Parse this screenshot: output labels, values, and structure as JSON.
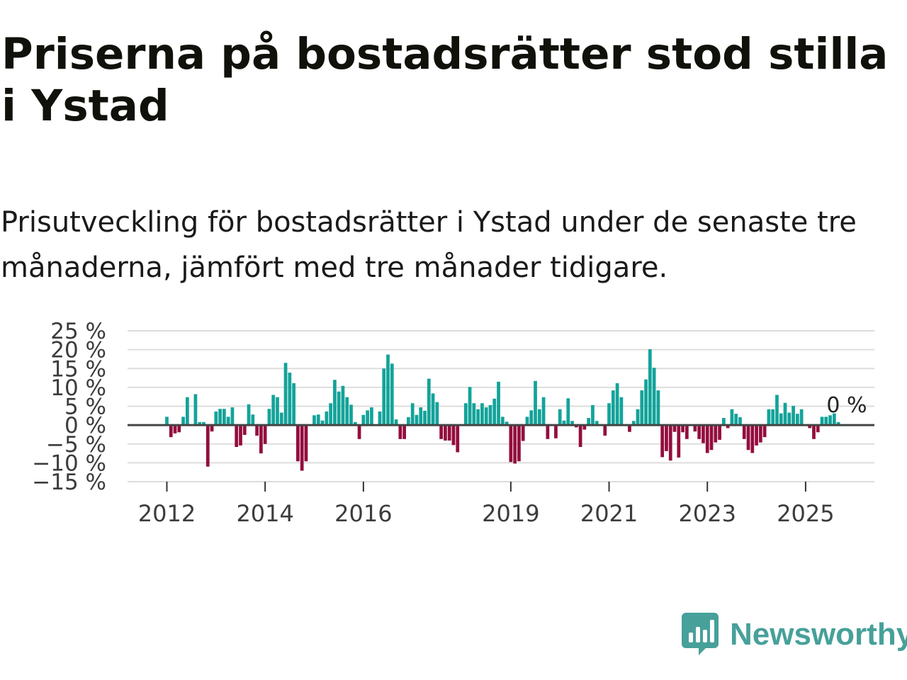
{
  "title": "Priserna på bostadsrätter stod stilla i Ystad",
  "subtitle": "Prisutveckling för bostadsrätter i Ystad under de senaste tre månaderna, jämfört med tre månader tidigare.",
  "brand": {
    "name": "Newsworthy",
    "icon": "newsworthy-logo-icon",
    "color": "#47a09a"
  },
  "colors": {
    "positive": "#13a39a",
    "negative": "#930d3e",
    "grid": "#dddddd",
    "zero_line": "#444444"
  },
  "chart_data": {
    "type": "bar",
    "title": "Prisutveckling för bostadsrätter i Ystad",
    "xlabel": "",
    "ylabel": "",
    "ylim": [
      -15,
      25
    ],
    "yticks": [
      25,
      20,
      15,
      10,
      5,
      0,
      -5,
      -10,
      -15
    ],
    "ytick_labels": [
      "25 %",
      "20 %",
      "15 %",
      "10 %",
      "5 %",
      "0 %",
      "−5 %",
      "−10 %",
      "−15 %"
    ],
    "xlim": [
      2011.2,
      2026.4
    ],
    "xticks": [
      2012,
      2014,
      2016,
      2019,
      2021,
      2023,
      2025
    ],
    "xtick_labels": [
      "2012",
      "2014",
      "2016",
      "2019",
      "2021",
      "2023",
      "2025"
    ],
    "start": "2012-01",
    "unit": "%",
    "grid": true,
    "annotation": {
      "label": "0 %",
      "value": 0
    },
    "values": [
      2.2,
      -3.2,
      -2.2,
      -1.9,
      2.2,
      7.4,
      0,
      8.2,
      0.8,
      0.8,
      -11,
      -1.7,
      3.6,
      4.3,
      4.3,
      2.2,
      4.7,
      -5.8,
      -5.4,
      -2.6,
      5.5,
      2.8,
      -2.8,
      -7.5,
      -5,
      4.3,
      8,
      7.4,
      3.3,
      16.5,
      13.9,
      11.1,
      -9.6,
      -12.1,
      -9.6,
      0,
      2.6,
      2.8,
      1.2,
      3.6,
      5.8,
      12,
      8.9,
      10.4,
      7.4,
      5.4,
      0.8,
      -3.7,
      2.7,
      3.9,
      4.7,
      0,
      3.6,
      15,
      18.7,
      16.3,
      1.5,
      -3.7,
      -3.7,
      2.1,
      5.8,
      2.7,
      4.7,
      3.8,
      12.3,
      8.4,
      6.1,
      -3.7,
      -4.1,
      -4.1,
      -5.3,
      -7.2,
      0,
      5.8,
      10.1,
      5.8,
      4.2,
      5.8,
      4.7,
      5.3,
      7,
      11.5,
      2.2,
      0.9,
      -9.8,
      -10.2,
      -9.6,
      -4.2,
      2.2,
      3.9,
      11.7,
      4.2,
      7.4,
      -3.7,
      0,
      -3.5,
      4.2,
      1.2,
      7.1,
      1.1,
      -0.6,
      -5.8,
      -1.2,
      1.9,
      5.3,
      1.1,
      0,
      -2.8,
      5.8,
      9.2,
      11.1,
      7.4,
      0,
      -1.8,
      1.1,
      4.2,
      9.2,
      12.1,
      20.1,
      15.2,
      9.2,
      -8.5,
      -6.9,
      -9.4,
      -1.8,
      -8.6,
      -1.9,
      -3.7,
      0,
      -1.7,
      -3.7,
      -4.8,
      -7.4,
      -6.6,
      -4.6,
      -3.9,
      1.9,
      -0.8,
      4.2,
      3,
      2.1,
      -3.7,
      -6.6,
      -7.4,
      -5.4,
      -4.6,
      -3.2,
      4.2,
      4.2,
      8,
      3.1,
      5.9,
      3.3,
      5.1,
      3,
      4.2,
      0,
      -0.8,
      -3.7,
      -1.9,
      2.2,
      2.2,
      2.6,
      3.1,
      0.8,
      0
    ]
  }
}
